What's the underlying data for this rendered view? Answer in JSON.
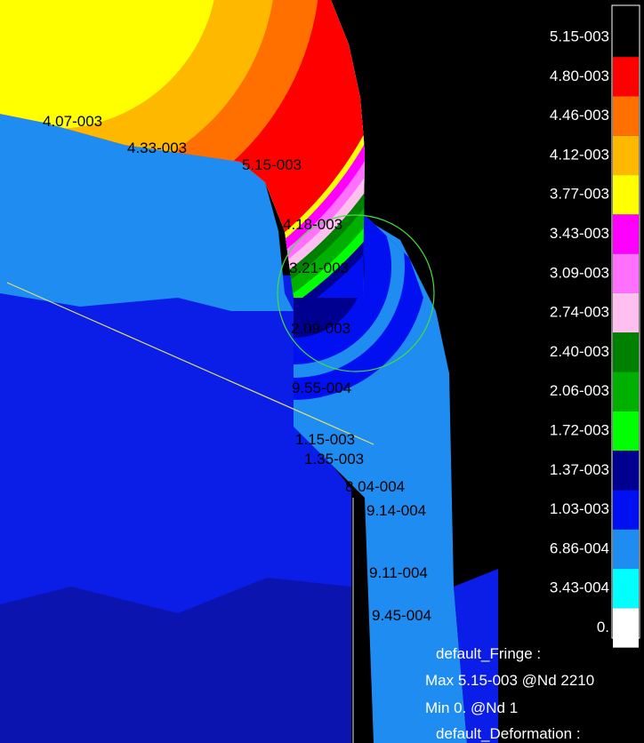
{
  "legend": {
    "levels": [
      {
        "label": "5.15-003",
        "color": "#000000"
      },
      {
        "label": "4.80-003",
        "color": "#ff0000"
      },
      {
        "label": "4.46-003",
        "color": "#ff7000"
      },
      {
        "label": "4.12-003",
        "color": "#ffb800"
      },
      {
        "label": "3.77-003",
        "color": "#ffff00"
      },
      {
        "label": "3.43-003",
        "color": "#ff00ff"
      },
      {
        "label": "3.09-003",
        "color": "#ff70ff"
      },
      {
        "label": "2.74-003",
        "color": "#ffc0f0"
      },
      {
        "label": "2.40-003",
        "color": "#008000"
      },
      {
        "label": "2.06-003",
        "color": "#00b000"
      },
      {
        "label": "1.72-003",
        "color": "#00ff00"
      },
      {
        "label": "1.37-003",
        "color": "#000090"
      },
      {
        "label": "1.03-003",
        "color": "#0010f0"
      },
      {
        "label": "6.86-004",
        "color": "#1e8cf0"
      },
      {
        "label": "3.43-004",
        "color": "#00ffff"
      },
      {
        "label": "0.",
        "color": "#ffffff"
      }
    ]
  },
  "contour_labels": [
    "4.07-003",
    "4.33-003",
    "5.15-003",
    "4.18-003",
    "3.21-003",
    "2.09-003",
    "9.55-004",
    "1.15-003",
    "1.35-003",
    "8.04-004",
    "9.14-004",
    "9.11-004",
    "9.45-004"
  ],
  "info": [
    "default_Fringe :",
    "Max 5.15-003 @Nd 2210",
    "Min 0. @Nd 1",
    "default_Deformation :"
  ]
}
